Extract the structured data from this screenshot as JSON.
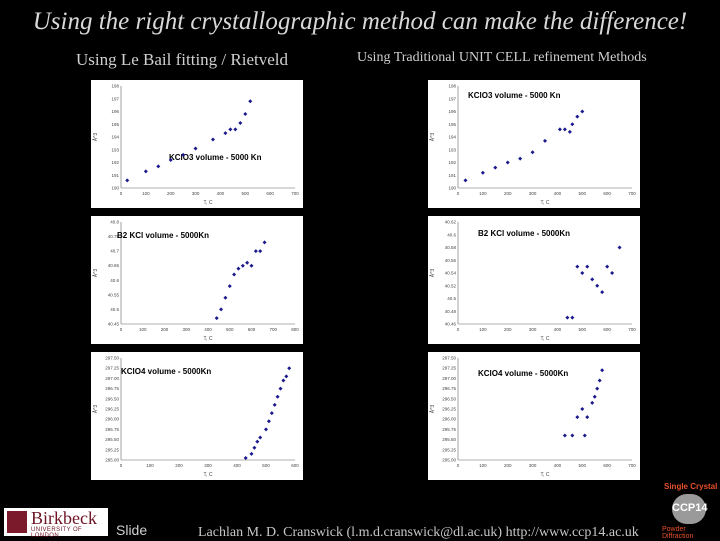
{
  "slide": {
    "title": "Using the right crystallographic method can make the difference!",
    "subtitle_left": "Using Le Bail fitting / Rietveld",
    "subtitle_right": "Using Traditional UNIT CELL refinement Methods",
    "slide_label": "Slide",
    "credit": "Lachlan M. D. Cranswick (l.m.d.cranswick@dl.ac.uk) http://www.ccp14.ac.uk",
    "logo_name": "Birkbeck",
    "logo_sub": "UNIVERSITY OF LONDON",
    "badge_top": "Single Crystal",
    "badge_text": "CCP14",
    "badge_bottom": "Powder Diffraction"
  },
  "colors": {
    "marker": "#1a1a8c",
    "background": "#000000",
    "panel": "#ffffff"
  },
  "chart_data": [
    {
      "type": "scatter",
      "title": "KClO3 volume - 5000 Kn",
      "xlabel": "T, C",
      "ylabel": "Å^3",
      "xlim": [
        0,
        700
      ],
      "ylim": [
        190,
        198
      ],
      "xticks": [
        0,
        100,
        200,
        300,
        400,
        500,
        600,
        700
      ],
      "yticks": [
        "190",
        "191",
        "192",
        "193",
        "194",
        "195",
        "196",
        "197",
        "198"
      ],
      "x": [
        25,
        100,
        150,
        200,
        250,
        300,
        370,
        420,
        440,
        460,
        480,
        500,
        520
      ],
      "y": [
        190.6,
        191.3,
        191.7,
        192.2,
        192.6,
        193.1,
        193.8,
        194.3,
        194.6,
        194.6,
        195.1,
        195.8,
        196.8
      ]
    },
    {
      "type": "scatter",
      "title": "B2 KCl volume - 5000Kn",
      "xlabel": "T, C",
      "ylabel": "Å^3",
      "xlim": [
        0,
        800
      ],
      "ylim": [
        40.45,
        40.8
      ],
      "xticks": [
        0,
        100,
        200,
        300,
        400,
        500,
        600,
        700,
        800
      ],
      "yticks": [
        "40.45",
        "40.5",
        "40.55",
        "40.6",
        "40.65",
        "40.7",
        "40.75",
        "40.8"
      ],
      "x": [
        440,
        460,
        480,
        500,
        520,
        540,
        560,
        580,
        600,
        620,
        640,
        660
      ],
      "y": [
        40.47,
        40.5,
        40.54,
        40.58,
        40.62,
        40.64,
        40.65,
        40.66,
        40.65,
        40.7,
        40.7,
        40.73
      ]
    },
    {
      "type": "scatter",
      "title": "KClO4 volume - 5000Kn",
      "xlabel": "T, C",
      "ylabel": "Å^3",
      "xlim": [
        0,
        600
      ],
      "ylim": [
        295,
        297.5
      ],
      "xticks": [
        0,
        100,
        200,
        300,
        400,
        500,
        600
      ],
      "yticks": [
        "295.00",
        "295.25",
        "295.50",
        "295.75",
        "296.00",
        "296.25",
        "296.50",
        "296.75",
        "297.00",
        "297.25",
        "297.50"
      ],
      "x": [
        430,
        450,
        460,
        470,
        480,
        500,
        510,
        520,
        530,
        540,
        550,
        560,
        570,
        580
      ],
      "y": [
        295.05,
        295.15,
        295.3,
        295.45,
        295.55,
        295.75,
        295.95,
        296.15,
        296.35,
        296.55,
        296.75,
        296.95,
        297.05,
        297.25
      ]
    },
    {
      "type": "scatter",
      "title": "KClO3 volume - 5000 Kn",
      "xlabel": "T, C",
      "ylabel": "Å^3",
      "xlim": [
        0,
        700
      ],
      "ylim": [
        190,
        198
      ],
      "xticks": [
        0,
        100,
        200,
        300,
        400,
        500,
        600,
        700
      ],
      "yticks": [
        "190",
        "191",
        "192",
        "193",
        "194",
        "195",
        "196",
        "197",
        "198"
      ],
      "x": [
        30,
        100,
        150,
        200,
        250,
        300,
        350,
        410,
        430,
        450,
        460,
        480,
        500
      ],
      "y": [
        190.6,
        191.2,
        191.6,
        192.0,
        192.3,
        192.8,
        193.7,
        194.6,
        194.6,
        194.4,
        195.0,
        195.6,
        196.0
      ]
    },
    {
      "type": "scatter",
      "title": "B2 KCl volume - 5000Kn",
      "xlabel": "T, C",
      "ylabel": "Å^3",
      "xlim": [
        0,
        700
      ],
      "ylim": [
        40.46,
        40.62
      ],
      "xticks": [
        0,
        100,
        200,
        300,
        400,
        500,
        600,
        700
      ],
      "yticks": [
        "40.46",
        "40.48",
        "40.5",
        "40.52",
        "40.54",
        "40.56",
        "40.58",
        "40.6",
        "40.62"
      ],
      "x": [
        440,
        460,
        480,
        500,
        520,
        540,
        560,
        580,
        600,
        620,
        650
      ],
      "y": [
        40.47,
        40.47,
        40.55,
        40.54,
        40.55,
        40.53,
        40.52,
        40.51,
        40.55,
        40.54,
        40.58
      ]
    },
    {
      "type": "scatter",
      "title": "KClO4 volume - 5000Kn",
      "xlabel": "T, C",
      "ylabel": "Å^3",
      "xlim": [
        0,
        700
      ],
      "ylim": [
        295,
        297.5
      ],
      "xticks": [
        0,
        100,
        200,
        300,
        400,
        500,
        600,
        700
      ],
      "yticks": [
        "295.00",
        "295.25",
        "295.50",
        "295.75",
        "296.00",
        "296.25",
        "296.50",
        "296.75",
        "297.00",
        "297.25",
        "297.50"
      ],
      "x": [
        430,
        460,
        480,
        500,
        510,
        520,
        540,
        550,
        560,
        570,
        580
      ],
      "y": [
        295.6,
        295.6,
        296.05,
        296.25,
        295.6,
        296.05,
        296.4,
        296.55,
        296.75,
        296.95,
        297.2
      ]
    }
  ]
}
